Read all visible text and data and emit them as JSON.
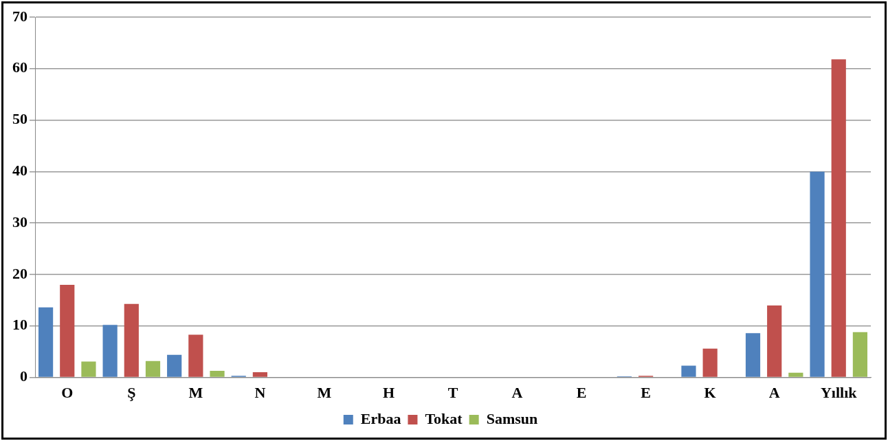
{
  "chart_data": {
    "type": "bar",
    "categories": [
      "O",
      "Ş",
      "M",
      "N",
      "M",
      "H",
      "T",
      "A",
      "E",
      "E",
      "K",
      "A",
      "Yıllık"
    ],
    "series": [
      {
        "name": "Erbaa",
        "color": "#4f81bd",
        "values": [
          13.6,
          10.2,
          4.4,
          0.3,
          0,
          0,
          0,
          0,
          0,
          0.2,
          2.3,
          8.6,
          40
        ]
      },
      {
        "name": "Tokat",
        "color": "#c0504d",
        "values": [
          18.0,
          14.3,
          8.3,
          1.0,
          0,
          0,
          0,
          0,
          0,
          0.3,
          5.6,
          14.0,
          61.8
        ]
      },
      {
        "name": "Samsun",
        "color": "#9bbb59",
        "values": [
          3.1,
          3.2,
          1.3,
          0,
          0,
          0,
          0,
          0,
          0,
          0,
          0,
          0.9,
          8.8
        ]
      }
    ],
    "ylim": [
      0,
      70
    ],
    "yticks": [
      0,
      10,
      20,
      30,
      40,
      50,
      60,
      70
    ],
    "grid": "y",
    "legend": "bottom"
  }
}
